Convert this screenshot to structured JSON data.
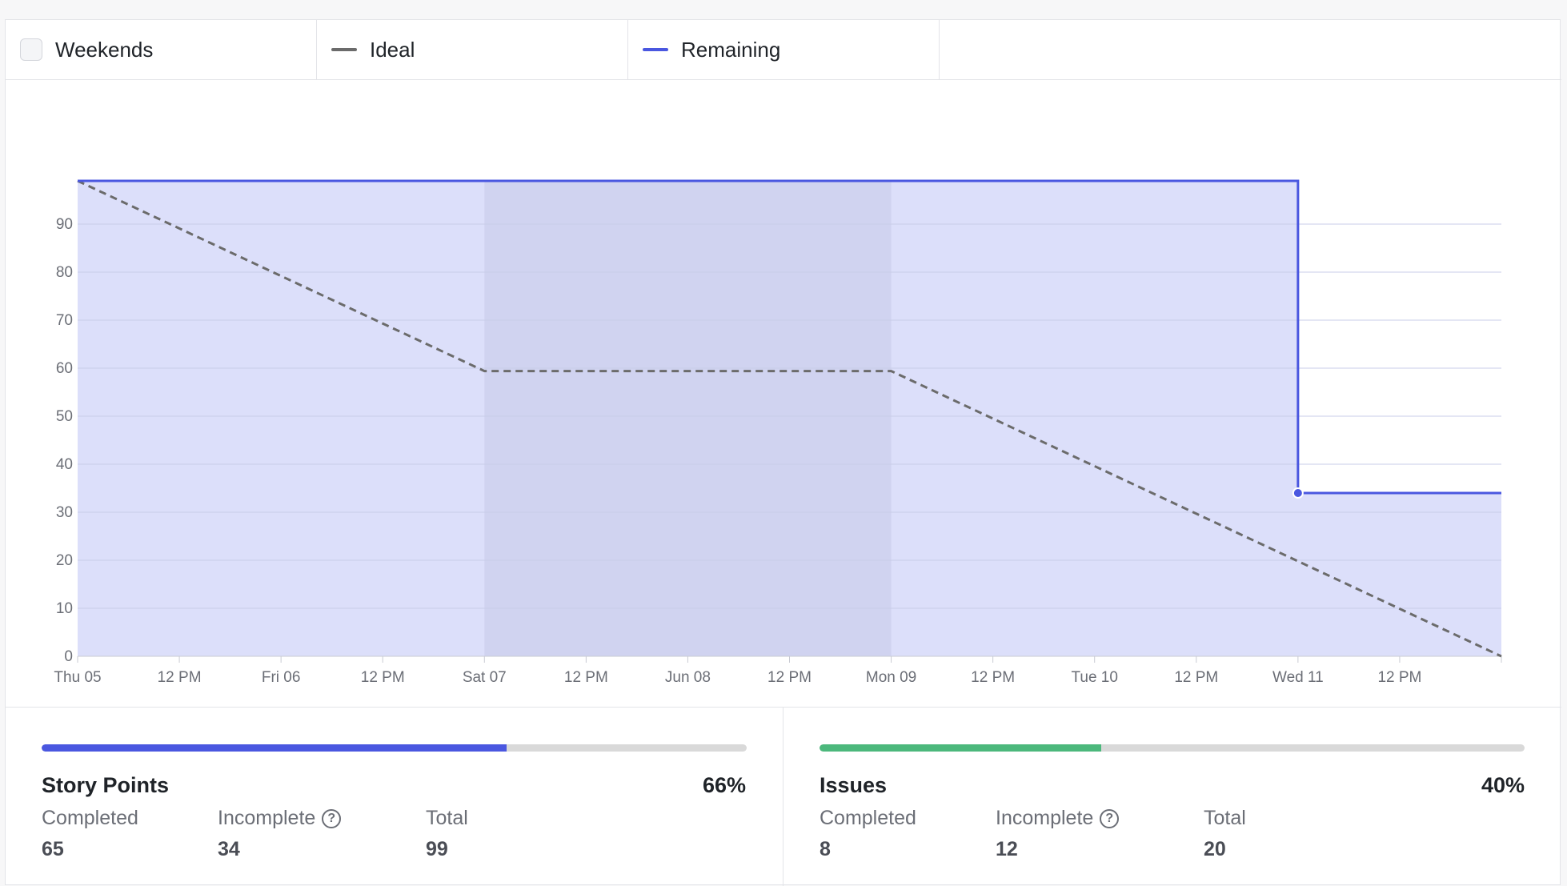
{
  "legend": {
    "weekends_label": "Weekends",
    "ideal_label": "Ideal",
    "remaining_label": "Remaining"
  },
  "colors": {
    "remaining_line": "#4a57e0",
    "remaining_fill": "#dcdffa",
    "weekend_fill": "#d0d3f0",
    "ideal_line": "#6b6b6b",
    "story_points_bar": "#4a57e0",
    "issues_bar": "#4cb87c"
  },
  "chart_data": {
    "type": "line",
    "x_tick_labels": [
      "Thu 05",
      "12 PM",
      "Fri 06",
      "12 PM",
      "Sat 07",
      "12 PM",
      "Jun 08",
      "12 PM",
      "Mon 09",
      "12 PM",
      "Tue 10",
      "12 PM",
      "Wed 11",
      "12 PM"
    ],
    "y_tick_labels": [
      "0",
      "10",
      "20",
      "30",
      "40",
      "50",
      "60",
      "70",
      "80",
      "90"
    ],
    "ylim": [
      0,
      99
    ],
    "xlim_hours": [
      0,
      168
    ],
    "weekend_shading": {
      "start_label": "Sat 07",
      "end_label": "Mon 09"
    },
    "grid": true,
    "legend_position": "top",
    "series": [
      {
        "name": "Ideal",
        "style": "dashed",
        "points": [
          {
            "x": "Thu 05",
            "y": 99
          },
          {
            "x": "Sat 07",
            "y": 59.4
          },
          {
            "x": "Mon 09",
            "y": 59.4
          },
          {
            "x": "end",
            "y": 0
          }
        ]
      },
      {
        "name": "Remaining",
        "style": "step",
        "points": [
          {
            "x": "Thu 05",
            "y": 99
          },
          {
            "x": "Wed 11",
            "y": 99
          },
          {
            "x": "Wed 11",
            "y": 34
          },
          {
            "x": "end",
            "y": 34
          }
        ]
      }
    ]
  },
  "story_points": {
    "title": "Story Points",
    "percent": "66%",
    "progress": 0.66,
    "completed_label": "Completed",
    "completed_value": "65",
    "incomplete_label": "Incomplete",
    "incomplete_value": "34",
    "total_label": "Total",
    "total_value": "99"
  },
  "issues": {
    "title": "Issues",
    "percent": "40%",
    "progress": 0.4,
    "completed_label": "Completed",
    "completed_value": "8",
    "incomplete_label": "Incomplete",
    "incomplete_value": "12",
    "total_label": "Total",
    "total_value": "20"
  },
  "help_icon_glyph": "?"
}
